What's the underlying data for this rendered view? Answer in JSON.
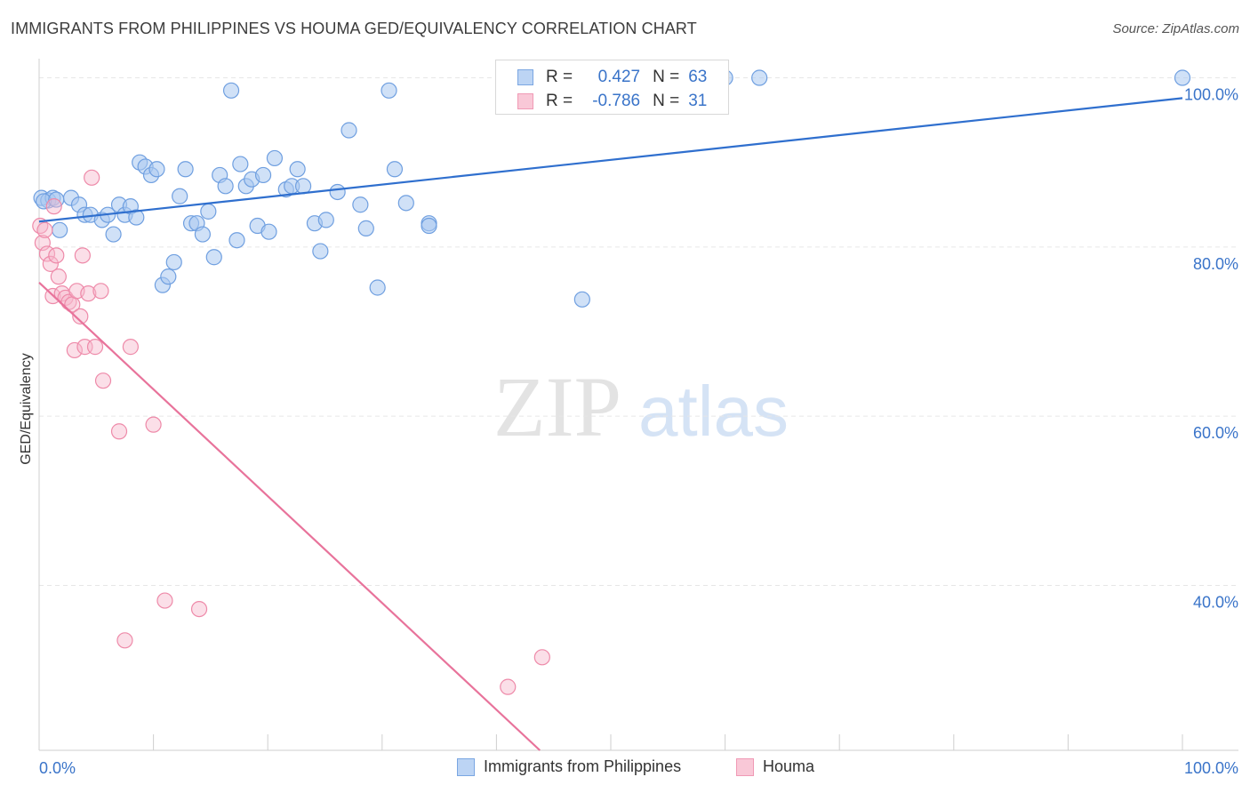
{
  "title": "IMMIGRANTS FROM PHILIPPINES VS HOUMA GED/EQUIVALENCY CORRELATION CHART",
  "source": "Source: ZipAtlas.com",
  "watermark": {
    "zip": "ZIP",
    "atlas": "atlas"
  },
  "colors": {
    "blue_fill": "#a9c8f0",
    "blue_stroke": "#6f9fe0",
    "blue_line": "#2f6fce",
    "pink_fill": "#f7b9cc",
    "pink_stroke": "#ee8aa9",
    "pink_line": "#e8739b",
    "tick_label": "#3a74c9",
    "grid": "#e6e6e6"
  },
  "legend_top": {
    "rows": [
      {
        "r_label": "R =",
        "r_value": "0.427",
        "n_label": "N =",
        "n_value": "63"
      },
      {
        "r_label": "R =",
        "r_value": "-0.786",
        "n_label": "N =",
        "n_value": "31"
      }
    ]
  },
  "legend_bottom": [
    "Immigrants from Philippines",
    "Houma"
  ],
  "chart_data": {
    "type": "scatter",
    "title": "IMMIGRANTS FROM PHILIPPINES VS HOUMA GED/EQUIVALENCY CORRELATION CHART",
    "xlabel": "",
    "ylabel": "GED/Equivalency",
    "xlim": [
      0,
      100
    ],
    "ylim": [
      20.5,
      101
    ],
    "x_tick_labels": [
      "0.0%",
      "100.0%"
    ],
    "y_ticks": [
      40,
      60,
      80,
      100
    ],
    "y_tick_labels": [
      "40.0%",
      "60.0%",
      "80.0%",
      "100.0%"
    ],
    "grid": true,
    "series": [
      {
        "name": "Immigrants from Philippines",
        "r": 0.427,
        "n": 63,
        "trend": [
          [
            0,
            83.0
          ],
          [
            100,
            97.6
          ]
        ],
        "points": [
          [
            0.2,
            85.8
          ],
          [
            0.8,
            85.5
          ],
          [
            1.2,
            85.8
          ],
          [
            1.8,
            82.0
          ],
          [
            2.8,
            85.8
          ],
          [
            3.5,
            85.0
          ],
          [
            4.0,
            83.8
          ],
          [
            4.5,
            83.8
          ],
          [
            5.5,
            83.2
          ],
          [
            6.0,
            83.8
          ],
          [
            6.5,
            81.5
          ],
          [
            7.0,
            85.0
          ],
          [
            7.5,
            83.8
          ],
          [
            8.0,
            84.8
          ],
          [
            8.5,
            83.5
          ],
          [
            8.8,
            90.0
          ],
          [
            9.3,
            89.5
          ],
          [
            9.8,
            88.5
          ],
          [
            10.3,
            89.2
          ],
          [
            10.8,
            75.5
          ],
          [
            11.3,
            76.5
          ],
          [
            11.8,
            78.2
          ],
          [
            12.3,
            86.0
          ],
          [
            12.8,
            89.2
          ],
          [
            13.3,
            82.8
          ],
          [
            13.8,
            82.8
          ],
          [
            14.3,
            81.5
          ],
          [
            14.8,
            84.2
          ],
          [
            15.3,
            78.8
          ],
          [
            15.8,
            88.5
          ],
          [
            16.3,
            87.2
          ],
          [
            16.8,
            98.5
          ],
          [
            17.3,
            80.8
          ],
          [
            17.6,
            89.8
          ],
          [
            18.1,
            87.2
          ],
          [
            18.6,
            88.0
          ],
          [
            19.1,
            82.5
          ],
          [
            19.6,
            88.5
          ],
          [
            20.1,
            81.8
          ],
          [
            20.6,
            90.5
          ],
          [
            21.6,
            86.8
          ],
          [
            22.1,
            87.2
          ],
          [
            22.6,
            89.2
          ],
          [
            23.1,
            87.2
          ],
          [
            24.1,
            82.8
          ],
          [
            24.6,
            79.5
          ],
          [
            25.1,
            83.2
          ],
          [
            26.1,
            86.5
          ],
          [
            27.1,
            93.8
          ],
          [
            28.1,
            85.0
          ],
          [
            28.6,
            82.2
          ],
          [
            29.6,
            75.2
          ],
          [
            30.6,
            98.5
          ],
          [
            31.1,
            89.2
          ],
          [
            32.1,
            85.2
          ],
          [
            34.1,
            82.8
          ],
          [
            34.1,
            82.5
          ],
          [
            47.5,
            73.8
          ],
          [
            60.0,
            100.0
          ],
          [
            63.0,
            100.0
          ],
          [
            100.0,
            100.0
          ],
          [
            0.4,
            85.4
          ],
          [
            1.5,
            85.6
          ]
        ]
      },
      {
        "name": "Houma",
        "r": -0.786,
        "n": 31,
        "trend": [
          [
            0,
            75.8
          ],
          [
            43.8,
            20.5
          ]
        ],
        "points": [
          [
            0.1,
            82.5
          ],
          [
            0.3,
            80.5
          ],
          [
            0.5,
            82.0
          ],
          [
            0.7,
            79.2
          ],
          [
            1.0,
            78.0
          ],
          [
            1.2,
            74.2
          ],
          [
            1.5,
            79.0
          ],
          [
            1.7,
            76.5
          ],
          [
            2.0,
            74.5
          ],
          [
            2.3,
            74.0
          ],
          [
            2.6,
            73.5
          ],
          [
            2.9,
            73.2
          ],
          [
            3.1,
            67.8
          ],
          [
            3.3,
            74.8
          ],
          [
            3.6,
            71.8
          ],
          [
            3.8,
            79.0
          ],
          [
            4.0,
            68.2
          ],
          [
            4.3,
            74.5
          ],
          [
            4.6,
            88.2
          ],
          [
            4.9,
            68.2
          ],
          [
            5.4,
            74.8
          ],
          [
            5.6,
            64.2
          ],
          [
            7.0,
            58.2
          ],
          [
            7.5,
            33.5
          ],
          [
            8.0,
            68.2
          ],
          [
            10.0,
            59.0
          ],
          [
            11.0,
            38.2
          ],
          [
            14.0,
            37.2
          ],
          [
            41.0,
            28.0
          ],
          [
            44.0,
            31.5
          ],
          [
            1.3,
            84.8
          ]
        ]
      }
    ]
  }
}
